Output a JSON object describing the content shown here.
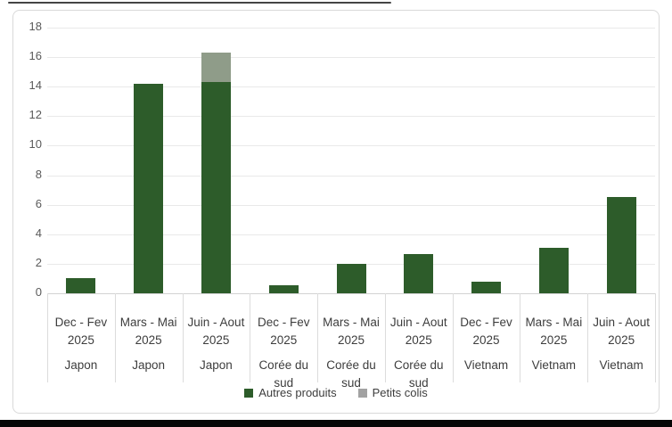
{
  "chart_data": {
    "type": "bar",
    "stacked": true,
    "title": "",
    "xlabel": "",
    "ylabel": "",
    "ylim": [
      0,
      18
    ],
    "y_ticks": [
      0,
      2,
      4,
      6,
      8,
      10,
      12,
      14,
      16,
      18
    ],
    "grid": true,
    "legend_position": "bottom",
    "categories": [
      {
        "period": "Dec - Fev",
        "year": "2025",
        "country": "Japon"
      },
      {
        "period": "Mars - Mai",
        "year": "2025",
        "country": "Japon"
      },
      {
        "period": "Juin - Aout",
        "year": "2025",
        "country": "Japon"
      },
      {
        "period": "Dec - Fev",
        "year": "2025",
        "country": "Corée du sud"
      },
      {
        "period": "Mars - Mai",
        "year": "2025",
        "country": "Corée du sud"
      },
      {
        "period": "Juin - Aout",
        "year": "2025",
        "country": "Corée du sud"
      },
      {
        "period": "Dec - Fev",
        "year": "2025",
        "country": "Vietnam"
      },
      {
        "period": "Mars - Mai",
        "year": "2025",
        "country": "Vietnam"
      },
      {
        "period": "Juin - Aout",
        "year": "2025",
        "country": "Vietnam"
      }
    ],
    "series": [
      {
        "name": "Autres produits",
        "color": "#2d5c2a",
        "legend_swatch": "#2d5c2a",
        "values": [
          1.0,
          14.2,
          14.3,
          0.55,
          2.0,
          2.65,
          0.8,
          3.1,
          6.5
        ]
      },
      {
        "name": "Petits colis",
        "color": "#8f9c89",
        "legend_swatch": "#a2a2a2",
        "values": [
          0,
          0,
          2.0,
          0,
          0,
          0,
          0,
          0,
          0
        ]
      }
    ]
  },
  "colors": {
    "panel_border": "#d9d9d9",
    "gridline": "#e9e9e9",
    "axis_line": "#d2d2d2",
    "separator": "#dcdcdc",
    "tick_label": "#5a5a5a",
    "category_label": "#3d3d3d",
    "bottom_bar": "#060606"
  }
}
